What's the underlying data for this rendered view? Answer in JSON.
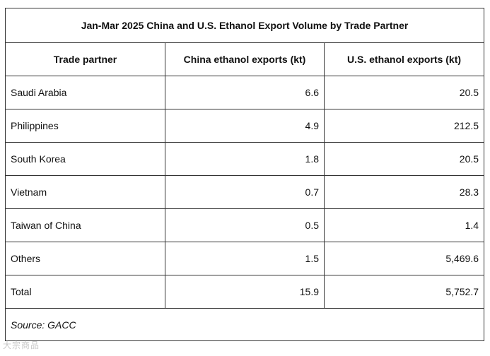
{
  "chart_data": {
    "type": "table",
    "title": "Jan-Mar 2025 China and U.S. Ethanol Export Volume by Trade Partner",
    "columns": [
      "Trade partner",
      "China ethanol exports (kt)",
      "U.S. ethanol exports (kt)"
    ],
    "rows": [
      {
        "partner": "Saudi Arabia",
        "china": "6.6",
        "us": "20.5"
      },
      {
        "partner": "Philippines",
        "china": "4.9",
        "us": "212.5"
      },
      {
        "partner": "South Korea",
        "china": "1.8",
        "us": "20.5"
      },
      {
        "partner": "Vietnam",
        "china": "0.7",
        "us": "28.3"
      },
      {
        "partner": "Taiwan of China",
        "china": "0.5",
        "us": "1.4"
      },
      {
        "partner": "Others",
        "china": "1.5",
        "us": "5,469.6"
      },
      {
        "partner": "Total",
        "china": "15.9",
        "us": "5,752.7"
      }
    ],
    "source": "Source: GACC"
  },
  "watermark": "大宗商品"
}
